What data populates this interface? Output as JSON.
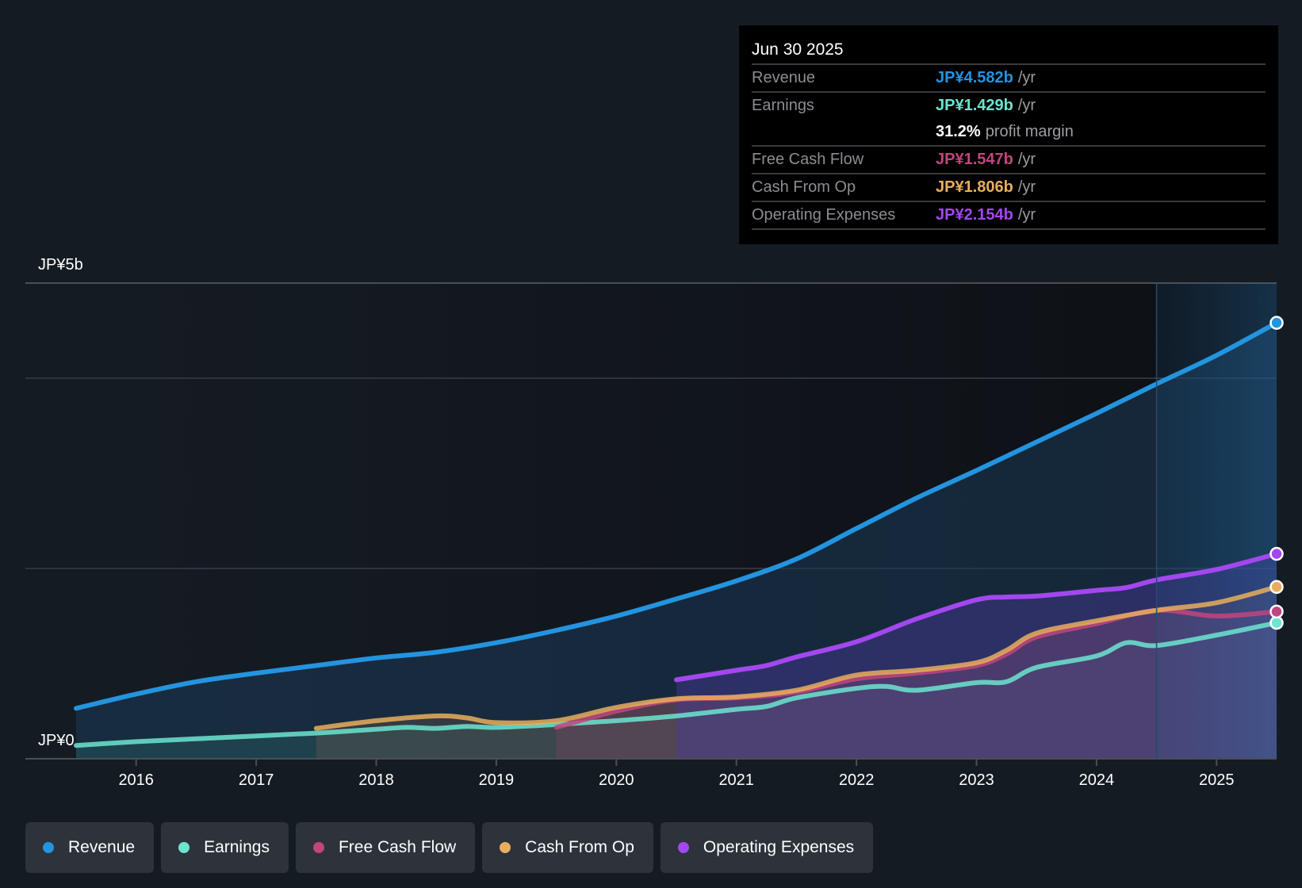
{
  "tooltip": {
    "date": "Jun 30 2025",
    "rows": [
      {
        "label": "Revenue",
        "value": "JP¥4.582b",
        "unit": "/yr",
        "color": "#2394df"
      },
      {
        "label": "Earnings",
        "value": "JP¥1.429b",
        "unit": "/yr",
        "color": "#6ce5d0"
      },
      {
        "label": "",
        "value": "31.2%",
        "unit": "profit margin",
        "color": "#ffffff"
      },
      {
        "label": "Free Cash Flow",
        "value": "JP¥1.547b",
        "unit": "/yr",
        "color": "#c2457e"
      },
      {
        "label": "Cash From Op",
        "value": "JP¥1.806b",
        "unit": "/yr",
        "color": "#e8ae5d"
      },
      {
        "label": "Operating Expenses",
        "value": "JP¥2.154b",
        "unit": "/yr",
        "color": "#a347ef"
      }
    ]
  },
  "chart_data": {
    "type": "area",
    "title": "",
    "xlabel": "",
    "ylabel": "",
    "y_unit": "JP¥ billions",
    "ylim": [
      0,
      5
    ],
    "y_tick_labels": [
      {
        "value": 5,
        "label": "JP¥5b"
      },
      {
        "value": 0,
        "label": "JP¥0"
      }
    ],
    "gridlines_at": [
      5,
      4,
      2,
      0
    ],
    "x_tick_labels": [
      "2016",
      "2017",
      "2018",
      "2019",
      "2020",
      "2021",
      "2022",
      "2023",
      "2024",
      "2025"
    ],
    "xlim": [
      2015.5,
      2025.5
    ],
    "highlight_from": 2024.5,
    "legend_position": "bottom-left",
    "series": [
      {
        "name": "Revenue",
        "color": "#2394df",
        "x": [
          2015.5,
          2016,
          2016.5,
          2017,
          2017.5,
          2018,
          2018.5,
          2019,
          2019.5,
          2020,
          2020.5,
          2021,
          2021.5,
          2022,
          2022.5,
          2023,
          2023.5,
          2024,
          2024.5,
          2025,
          2025.5
        ],
        "values": [
          0.53,
          0.68,
          0.81,
          0.9,
          0.98,
          1.06,
          1.12,
          1.22,
          1.35,
          1.5,
          1.68,
          1.87,
          2.1,
          2.42,
          2.74,
          3.03,
          3.33,
          3.63,
          3.94,
          4.24,
          4.582
        ]
      },
      {
        "name": "Earnings",
        "color": "#6ce5d0",
        "x": [
          2015.5,
          2016,
          2016.5,
          2017,
          2017.5,
          2018,
          2018.25,
          2018.5,
          2018.75,
          2019,
          2019.5,
          2020,
          2020.5,
          2021,
          2021.25,
          2021.5,
          2022,
          2022.25,
          2022.5,
          2023,
          2023.25,
          2023.5,
          2024,
          2024.25,
          2024.5,
          2025,
          2025.5
        ],
        "values": [
          0.14,
          0.18,
          0.21,
          0.24,
          0.27,
          0.31,
          0.33,
          0.32,
          0.34,
          0.33,
          0.36,
          0.4,
          0.45,
          0.52,
          0.55,
          0.64,
          0.74,
          0.76,
          0.72,
          0.8,
          0.81,
          0.96,
          1.08,
          1.22,
          1.19,
          1.3,
          1.429
        ]
      },
      {
        "name": "Free Cash Flow",
        "color": "#c2457e",
        "x": [
          2019.5,
          2020,
          2020.5,
          2021,
          2021.5,
          2022,
          2022.5,
          2023,
          2023.25,
          2023.5,
          2024,
          2024.5,
          2025,
          2025.5
        ],
        "values": [
          0.33,
          0.5,
          0.62,
          0.64,
          0.7,
          0.84,
          0.9,
          0.98,
          1.1,
          1.28,
          1.42,
          1.56,
          1.5,
          1.547
        ]
      },
      {
        "name": "Cash From Op",
        "color": "#e8ae5d",
        "x": [
          2017.5,
          2018,
          2018.5,
          2018.75,
          2019,
          2019.5,
          2020,
          2020.5,
          2021,
          2021.5,
          2022,
          2022.5,
          2023,
          2023.25,
          2023.5,
          2024,
          2024.5,
          2025,
          2025.5
        ],
        "values": [
          0.32,
          0.4,
          0.45,
          0.43,
          0.38,
          0.4,
          0.54,
          0.63,
          0.65,
          0.72,
          0.88,
          0.93,
          1.01,
          1.14,
          1.32,
          1.45,
          1.56,
          1.64,
          1.806
        ]
      },
      {
        "name": "Operating Expenses",
        "color": "#a347ef",
        "x": [
          2020.5,
          2021,
          2021.25,
          2021.5,
          2022,
          2022.5,
          2023,
          2023.25,
          2023.5,
          2024,
          2024.25,
          2024.5,
          2025,
          2025.5
        ],
        "values": [
          0.83,
          0.93,
          0.98,
          1.07,
          1.23,
          1.47,
          1.67,
          1.7,
          1.71,
          1.77,
          1.8,
          1.88,
          1.99,
          2.154
        ]
      }
    ]
  },
  "legend": [
    {
      "label": "Revenue",
      "color": "#2394df"
    },
    {
      "label": "Earnings",
      "color": "#6ce5d0"
    },
    {
      "label": "Free Cash Flow",
      "color": "#c2457e"
    },
    {
      "label": "Cash From Op",
      "color": "#e8ae5d"
    },
    {
      "label": "Operating Expenses",
      "color": "#a347ef"
    }
  ]
}
